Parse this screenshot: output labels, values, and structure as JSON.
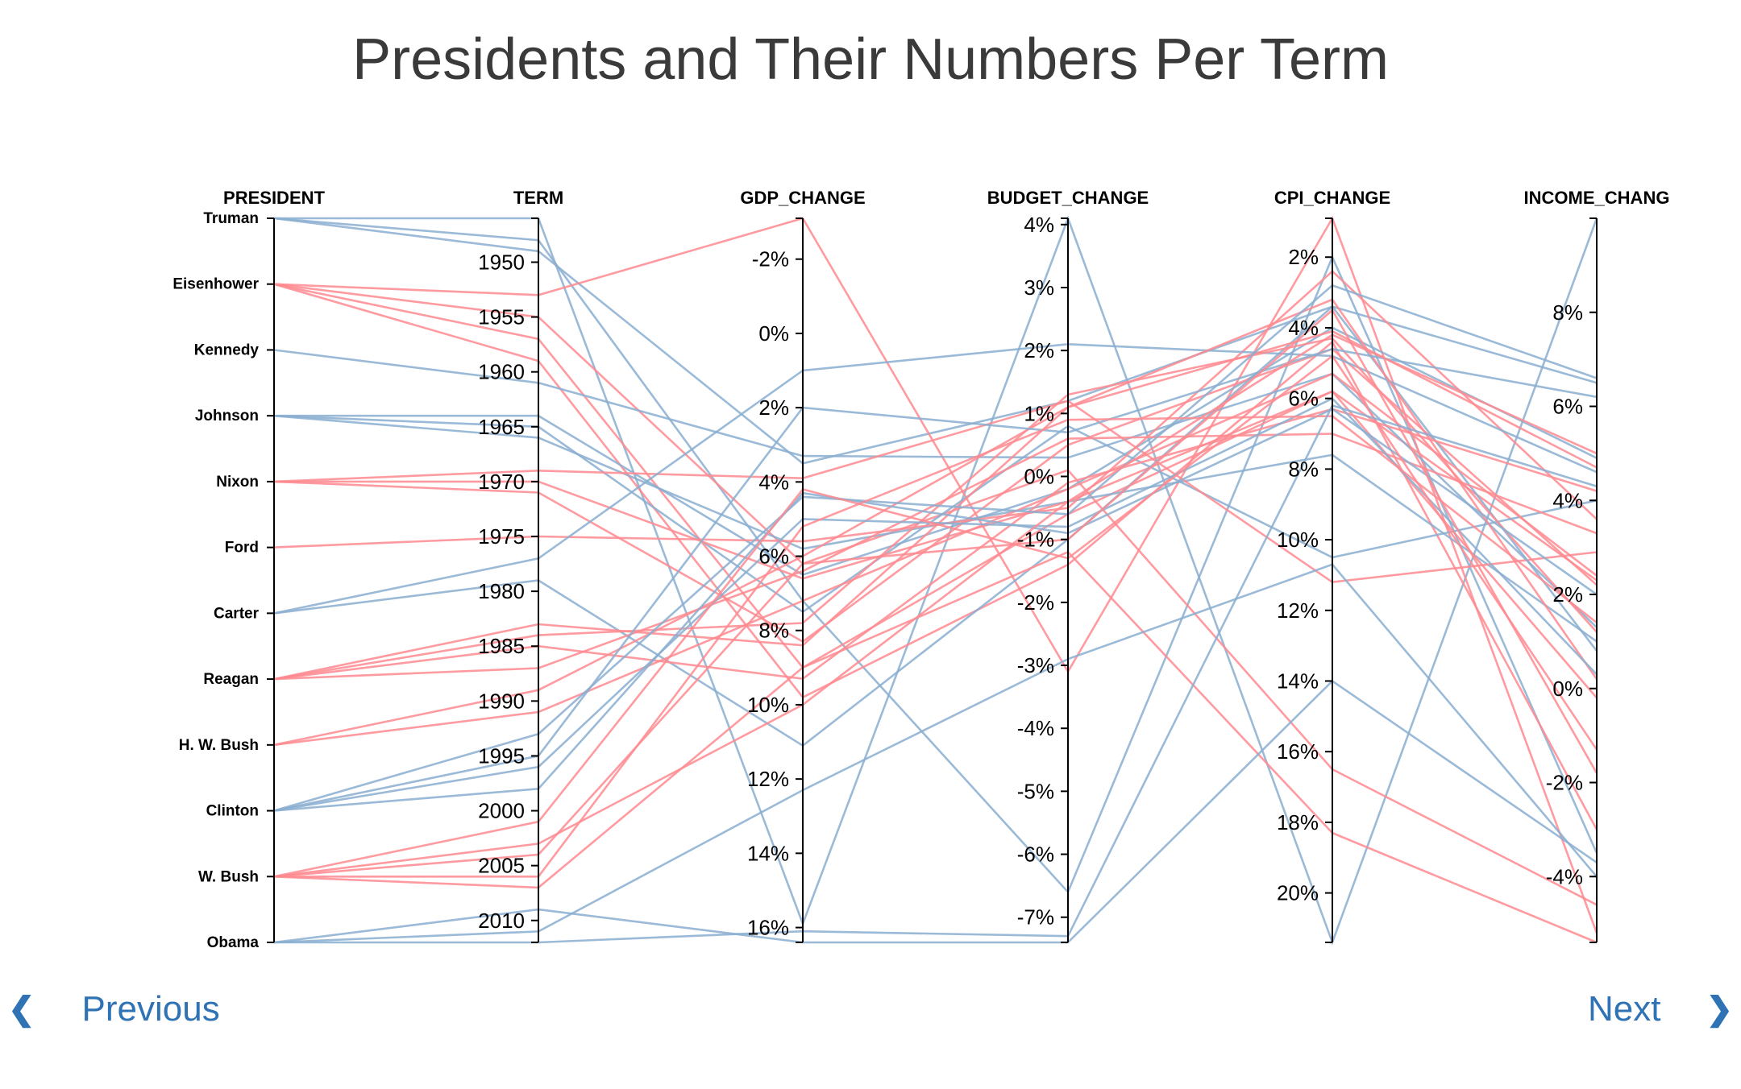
{
  "page": {
    "title": "Presidents and Their Numbers Per Term"
  },
  "nav": {
    "previous_label": "Previous",
    "next_label": "Next",
    "previous_icon": "chevron-left-icon",
    "next_icon": "chevron-right-icon"
  },
  "colors": {
    "democrat_line": "#8aaed0",
    "republican_line": "#ff8a8f",
    "axis": "#000000",
    "nav": "#2f73b5"
  },
  "chart_data": {
    "type": "parallel-coordinates",
    "title": "Presidents and Their Numbers Per Term",
    "axes": [
      {
        "key": "president",
        "label": "PRESIDENT",
        "type": "category",
        "categories": [
          "Truman",
          "Eisenhower",
          "Kennedy",
          "Johnson",
          "Nixon",
          "Ford",
          "Carter",
          "Reagan",
          "H. W. Bush",
          "Clinton",
          "W. Bush",
          "Obama"
        ]
      },
      {
        "key": "term",
        "label": "TERM",
        "type": "linear",
        "domain": [
          1946,
          2012
        ],
        "ticks": [
          1950,
          1955,
          1960,
          1965,
          1970,
          1975,
          1980,
          1985,
          1990,
          1995,
          2000,
          2005,
          2010
        ],
        "tick_labels": [
          "1950",
          "1955",
          "1960",
          "1965",
          "1970",
          "1975",
          "1980",
          "1985",
          "1990",
          "1995",
          "2000",
          "2005",
          "2010"
        ]
      },
      {
        "key": "gdp_change",
        "label": "GDP_CHANGE",
        "type": "linear",
        "domain": [
          -3.1,
          16.4
        ],
        "ticks": [
          -2,
          0,
          2,
          4,
          6,
          8,
          10,
          12,
          14,
          16
        ],
        "tick_labels": [
          "-2%",
          "0%",
          "2%",
          "4%",
          "6%",
          "8%",
          "10%",
          "12%",
          "14%",
          "16%"
        ]
      },
      {
        "key": "budget_change",
        "label": "BUDGET_CHANGE",
        "type": "linear",
        "domain": [
          4.1,
          -7.4
        ],
        "ticks": [
          4,
          3,
          2,
          1,
          0,
          -1,
          -2,
          -3,
          -4,
          -5,
          -6,
          -7
        ],
        "tick_labels": [
          "4%",
          "3%",
          "2%",
          "1%",
          "0%",
          "-1%",
          "-2%",
          "-3%",
          "-4%",
          "-5%",
          "-6%",
          "-7%"
        ]
      },
      {
        "key": "cpi_change",
        "label": "CPI_CHANGE",
        "type": "linear",
        "domain": [
          0.9,
          21.4
        ],
        "ticks": [
          2,
          4,
          6,
          8,
          10,
          12,
          14,
          16,
          18,
          20
        ],
        "tick_labels": [
          "2%",
          "4%",
          "6%",
          "8%",
          "10%",
          "12%",
          "14%",
          "16%",
          "18%",
          "20%"
        ]
      },
      {
        "key": "income_change",
        "label": "INCOME_CHANG",
        "type": "linear",
        "domain": [
          10,
          -5.4
        ],
        "ticks": [
          8,
          6,
          4,
          2,
          0,
          -2,
          -4
        ],
        "tick_labels": [
          "8%",
          "6%",
          "4%",
          "2%",
          "0%",
          "-2%",
          "-4%"
        ]
      }
    ],
    "party_of_president": {
      "Truman": "democrat",
      "Eisenhower": "republican",
      "Kennedy": "democrat",
      "Johnson": "democrat",
      "Nixon": "republican",
      "Ford": "republican",
      "Carter": "democrat",
      "Reagan": "republican",
      "H. W. Bush": "republican",
      "Clinton": "democrat",
      "W. Bush": "republican",
      "Obama": "democrat"
    },
    "records": [
      [
        "Truman",
        1946,
        15.9,
        4.1,
        21.4,
        10.0
      ],
      [
        "Truman",
        1948,
        7.2,
        -6.6,
        2.0,
        -3.5
      ],
      [
        "Truman",
        1949,
        3.5,
        1.2,
        3.4,
        6.5
      ],
      [
        "Eisenhower",
        1953,
        -3.1,
        -3.1,
        0.9,
        -5.2
      ],
      [
        "Eisenhower",
        1955,
        6.2,
        0.1,
        16.5,
        -4.6
      ],
      [
        "Eisenhower",
        1957,
        9.0,
        -0.6,
        5.8,
        2.3
      ],
      [
        "Eisenhower",
        1959,
        9.8,
        -1.4,
        4.4,
        -3.0
      ],
      [
        "Kennedy",
        1961,
        3.3,
        0.3,
        5.3,
        1.3
      ],
      [
        "Johnson",
        1964,
        6.5,
        -0.2,
        4.0,
        4.9
      ],
      [
        "Johnson",
        1965,
        7.5,
        0.8,
        10.5,
        4.0
      ],
      [
        "Johnson",
        1966,
        5.8,
        -0.4,
        7.6,
        1.0
      ],
      [
        "Nixon",
        1969,
        3.9,
        1.2,
        11.2,
        2.9
      ],
      [
        "Nixon",
        1970,
        6.6,
        -0.4,
        5.8,
        -0.2
      ],
      [
        "Nixon",
        1971,
        8.3,
        0.5,
        4.6,
        2.2
      ],
      [
        "Ford",
        1975,
        5.6,
        -0.5,
        2.4,
        3.6
      ],
      [
        "Carter",
        1977,
        1.0,
        2.1,
        4.8,
        4.6
      ],
      [
        "Carter",
        1979,
        11.1,
        -1.0,
        3.4,
        0.8
      ],
      [
        "Reagan",
        1983,
        8.4,
        1.1,
        3.2,
        0.2
      ],
      [
        "Reagan",
        1984,
        7.8,
        1.3,
        4.3,
        1.2
      ],
      [
        "Reagan",
        1985,
        9.3,
        -0.1,
        6.3,
        4.2
      ],
      [
        "Reagan",
        1987,
        6.4,
        0.6,
        7.0,
        3.3
      ],
      [
        "H. W. Bush",
        1989,
        6.0,
        1.1,
        4.1,
        4.7
      ],
      [
        "H. W. Bush",
        1991,
        7.2,
        -0.2,
        5.3,
        2.4
      ],
      [
        "Clinton",
        1993,
        4.4,
        -0.6,
        2.8,
        6.6
      ],
      [
        "Clinton",
        1995,
        2.0,
        0.7,
        4.6,
        6.2
      ],
      [
        "Clinton",
        1996,
        5.0,
        -0.8,
        6.0,
        0.3
      ],
      [
        "Clinton",
        1998,
        4.3,
        -0.9,
        6.3,
        2.0
      ],
      [
        "W. Bush",
        2001,
        4.2,
        -1.3,
        4.8,
        -1.3
      ],
      [
        "W. Bush",
        2003,
        10.0,
        -0.4,
        4.2,
        5.0
      ],
      [
        "W. Bush",
        2004,
        6.2,
        -1.0,
        3.5,
        -1.8
      ],
      [
        "W. Bush",
        2006,
        5.2,
        0.9,
        6.5,
        1.4
      ],
      [
        "W. Bush",
        2007,
        9.0,
        -1.2,
        18.3,
        -5.4
      ],
      [
        "Obama",
        2009,
        16.4,
        -7.4,
        14.0,
        -3.7
      ],
      [
        "Obama",
        2011,
        12.3,
        -2.9,
        10.7,
        -4.0
      ],
      [
        "Obama",
        2012,
        16.1,
        -7.3,
        6.2,
        4.3
      ]
    ]
  }
}
